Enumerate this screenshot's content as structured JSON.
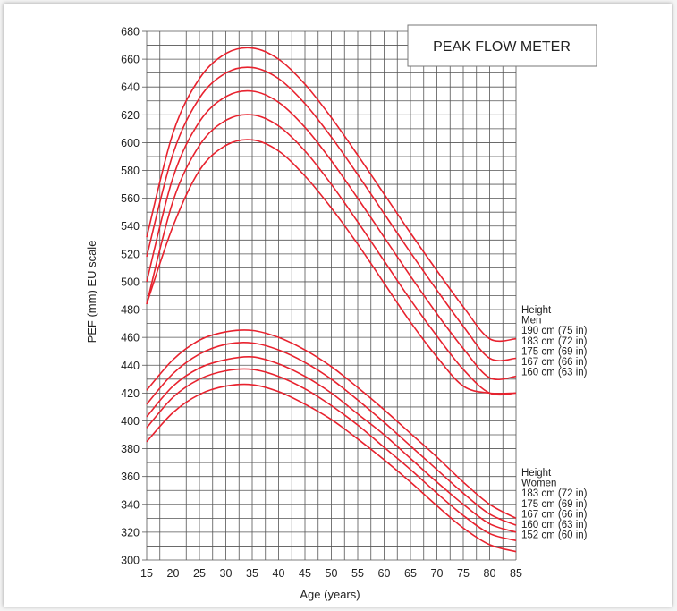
{
  "chart_data": {
    "type": "line",
    "title": "PEAK FLOW METER",
    "xlabel": "Age (years)",
    "ylabel": "PEF  (mm) EU scale",
    "xlim": [
      15,
      85
    ],
    "ylim": [
      300,
      680
    ],
    "x_ticks": [
      15,
      20,
      25,
      30,
      35,
      40,
      45,
      50,
      55,
      60,
      65,
      70,
      75,
      80,
      85
    ],
    "y_ticks": [
      300,
      320,
      340,
      360,
      380,
      400,
      420,
      440,
      460,
      480,
      500,
      520,
      540,
      560,
      580,
      600,
      620,
      640,
      660,
      680
    ],
    "grid": true,
    "line_color": "#e8222e",
    "x": [
      15,
      20,
      25,
      30,
      35,
      40,
      45,
      50,
      55,
      60,
      65,
      70,
      75,
      80,
      85
    ],
    "groups": [
      {
        "heading": [
          "Height",
          "Men"
        ],
        "series": [
          {
            "name": "190 cm (75 in)",
            "values": [
              532,
              607,
              646,
              664,
              668,
              660,
              642,
              618,
              591,
              563,
              535,
              508,
              482,
              459,
              459
            ]
          },
          {
            "name": "183 cm (72 in)",
            "values": [
              518,
              592,
              632,
              650,
              654,
              646,
              628,
              604,
              577,
              549,
              521,
              494,
              468,
              445,
              445
            ]
          },
          {
            "name": "175 cm (69 in)",
            "values": [
              500,
              575,
              615,
              633,
              637,
              629,
              611,
              587,
              560,
              532,
              504,
              477,
              452,
              431,
              432
            ]
          },
          {
            "name": "167 cm (66 in)",
            "values": [
              484,
              558,
              598,
              616,
              620,
              612,
              594,
              570,
              543,
              515,
              487,
              461,
              437,
              420,
              420
            ]
          },
          {
            "name": "160 cm (63 in)",
            "values": [
              484,
              540,
              580,
              598,
              602,
              594,
              576,
              553,
              527,
              499,
              471,
              446,
              425,
              420,
              420
            ]
          }
        ]
      },
      {
        "heading": [
          "Height",
          "Women"
        ],
        "series": [
          {
            "name": "183 cm (72 in)",
            "values": [
              422,
              444,
              458,
              464,
              465,
              460,
              451,
              439,
              424,
              408,
              391,
              374,
              356,
              340,
              330
            ]
          },
          {
            "name": "175 cm (69 in)",
            "values": [
              412,
              434,
              448,
              455,
              456,
              451,
              442,
              430,
              415,
              399,
              382,
              365,
              348,
              333,
              325
            ]
          },
          {
            "name": "167 cm (66 in)",
            "values": [
              403,
              425,
              438,
              444,
              446,
              441,
              432,
              420,
              405,
              390,
              373,
              356,
              340,
              326,
              320
            ]
          },
          {
            "name": "160 cm (63 in)",
            "values": [
              395,
              417,
              430,
              436,
              437,
              432,
              423,
              411,
              397,
              381,
              365,
              348,
              332,
              319,
              314
            ]
          },
          {
            "name": "152 cm (60 in)",
            "values": [
              385,
              406,
              419,
              425,
              426,
              421,
              412,
              401,
              387,
              372,
              356,
              339,
              323,
              311,
              306
            ]
          }
        ]
      }
    ]
  }
}
